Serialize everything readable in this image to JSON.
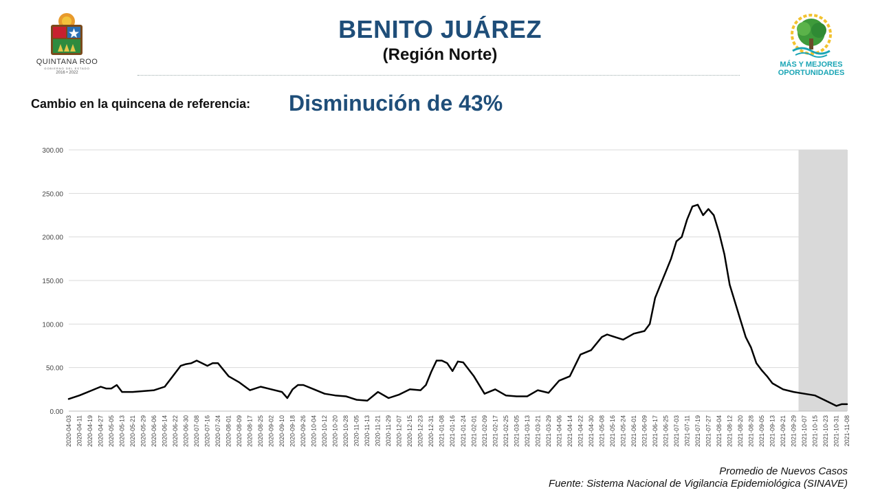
{
  "header": {
    "title": "BENITO JUÁREZ",
    "subtitle": "(Región Norte)",
    "left_logo": {
      "name": "QUINTANA ROO",
      "sub": "GOBIERNO DEL ESTADO",
      "years": "2016 • 2022"
    },
    "right_logo": {
      "line1": "MÁS Y MEJORES",
      "line2": "OPORTUNIDADES"
    }
  },
  "change": {
    "label": "Cambio en la quincena de referencia:",
    "value": "Disminución de 43%"
  },
  "footer": {
    "series_note": "Promedio de Nuevos Casos",
    "source": "Fuente: Sistema Nacional de Vigilancia Epidemiológica (SINAVE)"
  },
  "colors": {
    "title": "#1f4e79",
    "line": "#000000",
    "shade": "#d9d9d9",
    "grid": "#d9d9d9",
    "logo_teal": "#1aa5b5"
  },
  "chart_data": {
    "type": "line",
    "title": "",
    "xlabel": "",
    "ylabel": "",
    "ylim": [
      0,
      300
    ],
    "yticks": [
      "0.00",
      "50.00",
      "100.00",
      "150.00",
      "200.00",
      "250.00",
      "300.00"
    ],
    "grid": true,
    "shaded_range": [
      "2021-10-15",
      "2021-11-08"
    ],
    "xticks": [
      "2020-04-03",
      "2020-04-11",
      "2020-04-19",
      "2020-04-27",
      "2020-05-05",
      "2020-05-13",
      "2020-05-21",
      "2020-05-29",
      "2020-06-06",
      "2020-06-14",
      "2020-06-22",
      "2020-06-30",
      "2020-07-08",
      "2020-07-16",
      "2020-07-24",
      "2020-08-01",
      "2020-08-09",
      "2020-08-17",
      "2020-08-25",
      "2020-09-02",
      "2020-09-10",
      "2020-09-18",
      "2020-09-26",
      "2020-10-04",
      "2020-10-12",
      "2020-10-20",
      "2020-10-28",
      "2020-11-05",
      "2020-11-13",
      "2020-11-21",
      "2020-11-29",
      "2020-12-07",
      "2020-12-15",
      "2020-12-23",
      "2020-12-31",
      "2021-01-08",
      "2021-01-16",
      "2021-01-24",
      "2021-02-01",
      "2021-02-09",
      "2021-02-17",
      "2021-02-25",
      "2021-03-05",
      "2021-03-13",
      "2021-03-21",
      "2021-03-29",
      "2021-04-06",
      "2021-04-14",
      "2021-04-22",
      "2021-04-30",
      "2021-05-08",
      "2021-05-16",
      "2021-05-24",
      "2021-06-01",
      "2021-06-09",
      "2021-06-17",
      "2021-06-25",
      "2021-07-03",
      "2021-07-11",
      "2021-07-19",
      "2021-07-27",
      "2021-08-04",
      "2021-08-12",
      "2021-08-20",
      "2021-08-28",
      "2021-09-05",
      "2021-09-13",
      "2021-09-21",
      "2021-09-29",
      "2021-10-07",
      "2021-10-15",
      "2021-10-23",
      "2021-10-31",
      "2021-11-08"
    ],
    "series": [
      {
        "x": [
          "2020-04-03",
          "2020-04-11",
          "2020-04-19",
          "2020-04-27",
          "2020-05-01",
          "2020-05-05",
          "2020-05-09",
          "2020-05-13",
          "2020-05-21",
          "2020-05-29",
          "2020-06-06",
          "2020-06-14",
          "2020-06-22",
          "2020-06-26",
          "2020-06-30",
          "2020-07-04",
          "2020-07-08",
          "2020-07-12",
          "2020-07-16",
          "2020-07-20",
          "2020-07-24",
          "2020-08-01",
          "2020-08-09",
          "2020-08-17",
          "2020-08-25",
          "2020-09-02",
          "2020-09-10",
          "2020-09-14",
          "2020-09-18",
          "2020-09-22",
          "2020-09-26",
          "2020-10-04",
          "2020-10-12",
          "2020-10-20",
          "2020-10-28",
          "2020-11-05",
          "2020-11-13",
          "2020-11-21",
          "2020-11-29",
          "2020-12-07",
          "2020-12-15",
          "2020-12-23",
          "2020-12-27",
          "2020-12-31",
          "2021-01-04",
          "2021-01-08",
          "2021-01-12",
          "2021-01-16",
          "2021-01-20",
          "2021-01-24",
          "2021-02-01",
          "2021-02-09",
          "2021-02-17",
          "2021-02-25",
          "2021-03-05",
          "2021-03-13",
          "2021-03-21",
          "2021-03-29",
          "2021-04-06",
          "2021-04-14",
          "2021-04-22",
          "2021-04-30",
          "2021-05-08",
          "2021-05-12",
          "2021-05-16",
          "2021-05-24",
          "2021-06-01",
          "2021-06-09",
          "2021-06-13",
          "2021-06-17",
          "2021-06-21",
          "2021-06-25",
          "2021-06-29",
          "2021-07-03",
          "2021-07-07",
          "2021-07-11",
          "2021-07-15",
          "2021-07-19",
          "2021-07-23",
          "2021-07-27",
          "2021-07-31",
          "2021-08-04",
          "2021-08-08",
          "2021-08-12",
          "2021-08-16",
          "2021-08-20",
          "2021-08-24",
          "2021-08-28",
          "2021-09-01",
          "2021-09-05",
          "2021-09-09",
          "2021-09-13",
          "2021-09-21",
          "2021-09-29",
          "2021-10-07",
          "2021-10-15",
          "2021-10-23",
          "2021-10-31",
          "2021-11-04",
          "2021-11-08"
        ],
        "values": [
          14,
          18,
          23,
          28,
          26,
          26,
          30,
          22,
          22,
          23,
          24,
          28,
          44,
          52,
          54,
          55,
          58,
          55,
          52,
          55,
          55,
          40,
          33,
          24,
          28,
          25,
          22,
          15,
          25,
          30,
          30,
          25,
          20,
          18,
          17,
          13,
          12,
          22,
          15,
          19,
          25,
          24,
          30,
          45,
          58,
          58,
          55,
          46,
          57,
          56,
          40,
          20,
          25,
          18,
          17,
          17,
          24,
          21,
          35,
          40,
          65,
          70,
          85,
          88,
          86,
          82,
          89,
          92,
          100,
          130,
          145,
          160,
          175,
          195,
          200,
          220,
          235,
          237,
          225,
          232,
          225,
          205,
          180,
          145,
          125,
          105,
          85,
          73,
          55,
          47,
          40,
          32,
          25,
          22,
          20,
          18,
          12,
          6,
          8,
          8
        ]
      }
    ]
  }
}
